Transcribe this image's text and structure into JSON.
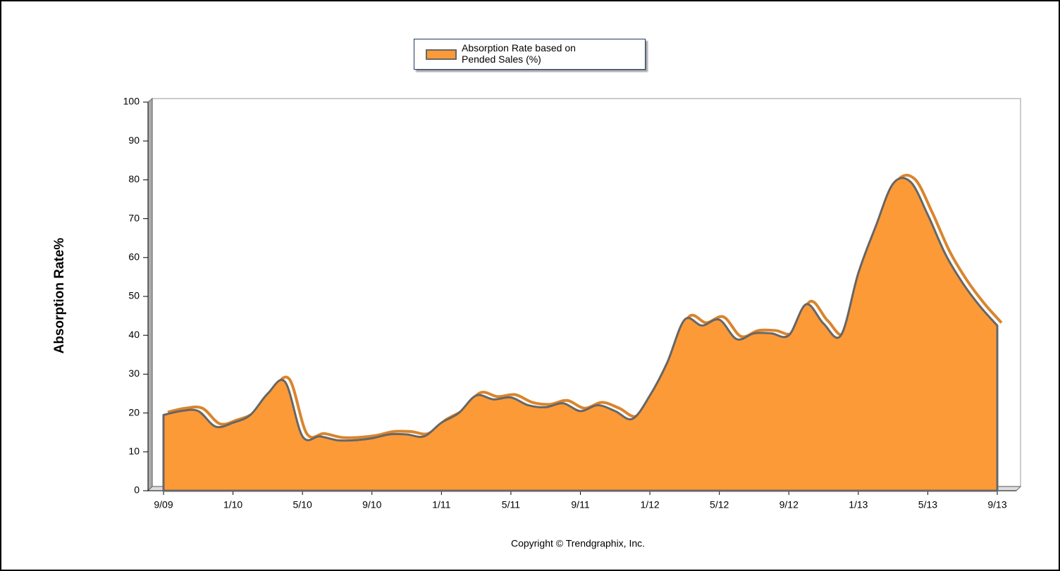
{
  "chart_data": {
    "type": "area",
    "y_label": "Absorption Rate%",
    "footer": "Copyright © Trendgraphix, Inc.",
    "categories": [
      "9/09",
      null,
      null,
      null,
      "1/10",
      null,
      null,
      null,
      "5/10",
      null,
      null,
      null,
      "9/10",
      null,
      null,
      null,
      "1/11",
      null,
      null,
      null,
      "5/11",
      null,
      null,
      null,
      "9/11",
      null,
      null,
      null,
      "1/12",
      null,
      null,
      null,
      "5/12",
      null,
      null,
      null,
      "9/12",
      null,
      null,
      null,
      "1/13",
      null,
      null,
      null,
      "5/13",
      null,
      null,
      null,
      "9/13"
    ],
    "series": [
      {
        "name": "Absorption Rate based on Pended Sales (%)",
        "color": "#fd9a38",
        "values": [
          19.5,
          20.5,
          20.5,
          16.5,
          17.5,
          19.5,
          25,
          28,
          14,
          14,
          13,
          13,
          13.5,
          14.5,
          14.5,
          14,
          17.5,
          20,
          24.5,
          23.5,
          24,
          22,
          21.5,
          22.5,
          20.5,
          22,
          20.5,
          18.5,
          24.5,
          33,
          44,
          42.5,
          44,
          39,
          40.5,
          40.5,
          40,
          48,
          43,
          40,
          56,
          68,
          79,
          79.5,
          71,
          61,
          53.5,
          47.5,
          42.5
        ]
      }
    ],
    "ylim": [
      0,
      100
    ],
    "yticks": [
      0,
      10,
      20,
      30,
      40,
      50,
      60,
      70,
      80,
      90,
      100
    ],
    "grid": false
  }
}
